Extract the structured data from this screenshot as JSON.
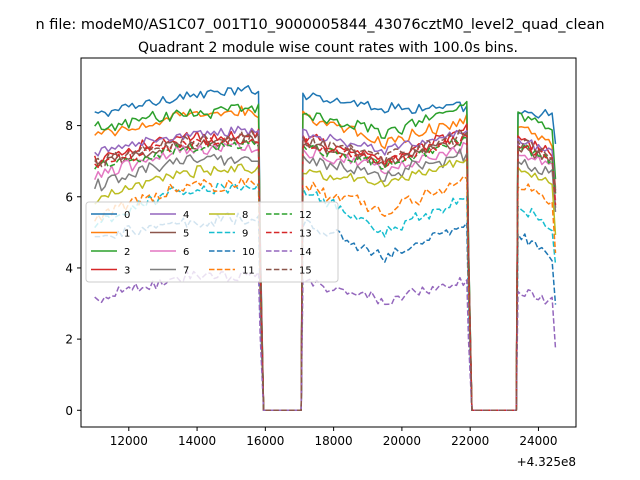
{
  "figure": {
    "suptitle": "n file: modeM0/AS1C07_001T10_9000005844_43076cztM0_level2_quad_clean"
  },
  "chart_data": {
    "type": "line",
    "title": "Quadrant 2 module wise count rates with 100.0s bins.",
    "xlabel": "",
    "ylabel": "",
    "x_offset_label": "+4.325e8",
    "xlim": [
      10600,
      25100
    ],
    "ylim": [
      -0.47,
      9.9
    ],
    "x_ticks": [
      12000,
      14000,
      16000,
      18000,
      20000,
      22000,
      24000
    ],
    "x_tick_labels": [
      "12000",
      "14000",
      "16000",
      "18000",
      "20000",
      "22000",
      "24000"
    ],
    "y_ticks": [
      0,
      2,
      4,
      6,
      8
    ],
    "y_tick_labels": [
      "0",
      "2",
      "4",
      "6",
      "8"
    ],
    "grid": false,
    "legend": {
      "placement": "center-left",
      "columns": 4
    },
    "segments": [
      {
        "x_start": 11000,
        "x_end": 15800,
        "n": 49
      },
      {
        "x_start": 15800,
        "x_end": 15950,
        "kind": "drop"
      },
      {
        "x_start": 16000,
        "x_end": 17050,
        "kind": "zero"
      },
      {
        "x_start": 17100,
        "x_end": 21900,
        "n": 49
      },
      {
        "x_start": 21900,
        "x_end": 22050,
        "kind": "drop"
      },
      {
        "x_start": 22100,
        "x_end": 23350,
        "kind": "zero"
      },
      {
        "x_start": 23400,
        "x_end": 24500,
        "n": 12
      }
    ],
    "series": [
      {
        "name": "0",
        "color": "#1f77b4",
        "style": "solid",
        "levels": [
          8.3,
          9.0,
          8.5,
          8.5,
          8.3
        ]
      },
      {
        "name": "1",
        "color": "#ff7f0e",
        "style": "solid",
        "levels": [
          7.7,
          8.4,
          7.5,
          8.2,
          7.5
        ]
      },
      {
        "name": "2",
        "color": "#2ca02c",
        "style": "solid",
        "levels": [
          7.9,
          8.5,
          7.8,
          8.6,
          7.9
        ]
      },
      {
        "name": "3",
        "color": "#d62728",
        "style": "solid",
        "levels": [
          7.0,
          7.8,
          7.0,
          7.9,
          7.2
        ]
      },
      {
        "name": "4",
        "color": "#9467bd",
        "style": "solid",
        "levels": [
          7.2,
          7.9,
          7.3,
          7.8,
          7.3
        ]
      },
      {
        "name": "5",
        "color": "#8c564b",
        "style": "solid",
        "levels": [
          6.9,
          7.6,
          7.0,
          7.6,
          7.0
        ]
      },
      {
        "name": "6",
        "color": "#e377c2",
        "style": "solid",
        "levels": [
          6.6,
          7.4,
          6.8,
          7.4,
          6.9
        ]
      },
      {
        "name": "7",
        "color": "#7f7f7f",
        "style": "solid",
        "levels": [
          6.3,
          7.1,
          6.6,
          7.2,
          6.6
        ]
      },
      {
        "name": "8",
        "color": "#bcbd22",
        "style": "solid",
        "levels": [
          5.9,
          6.8,
          6.4,
          7.0,
          6.4
        ]
      },
      {
        "name": "9",
        "color": "#17becf",
        "style": "dashed",
        "levels": [
          5.2,
          6.3,
          5.0,
          6.0,
          5.0
        ]
      },
      {
        "name": "10",
        "color": "#1f77b4",
        "style": "dashed",
        "levels": [
          4.9,
          5.4,
          4.3,
          5.2,
          4.2
        ]
      },
      {
        "name": "11",
        "color": "#ff7f0e",
        "style": "dashed",
        "levels": [
          5.4,
          6.4,
          5.6,
          6.5,
          5.8
        ]
      },
      {
        "name": "12",
        "color": "#2ca02c",
        "style": "dashed",
        "levels": [
          6.8,
          7.5,
          6.9,
          7.6,
          6.9
        ]
      },
      {
        "name": "13",
        "color": "#d62728",
        "style": "dashed",
        "levels": [
          6.9,
          7.6,
          7.0,
          7.7,
          7.0
        ]
      },
      {
        "name": "14",
        "color": "#9467bd",
        "style": "dashed",
        "levels": [
          3.1,
          3.8,
          3.1,
          3.6,
          3.0
        ]
      },
      {
        "name": "15",
        "color": "#8c564b",
        "style": "dashed",
        "levels": [
          7.0,
          7.7,
          7.1,
          7.8,
          7.1
        ]
      }
    ]
  }
}
